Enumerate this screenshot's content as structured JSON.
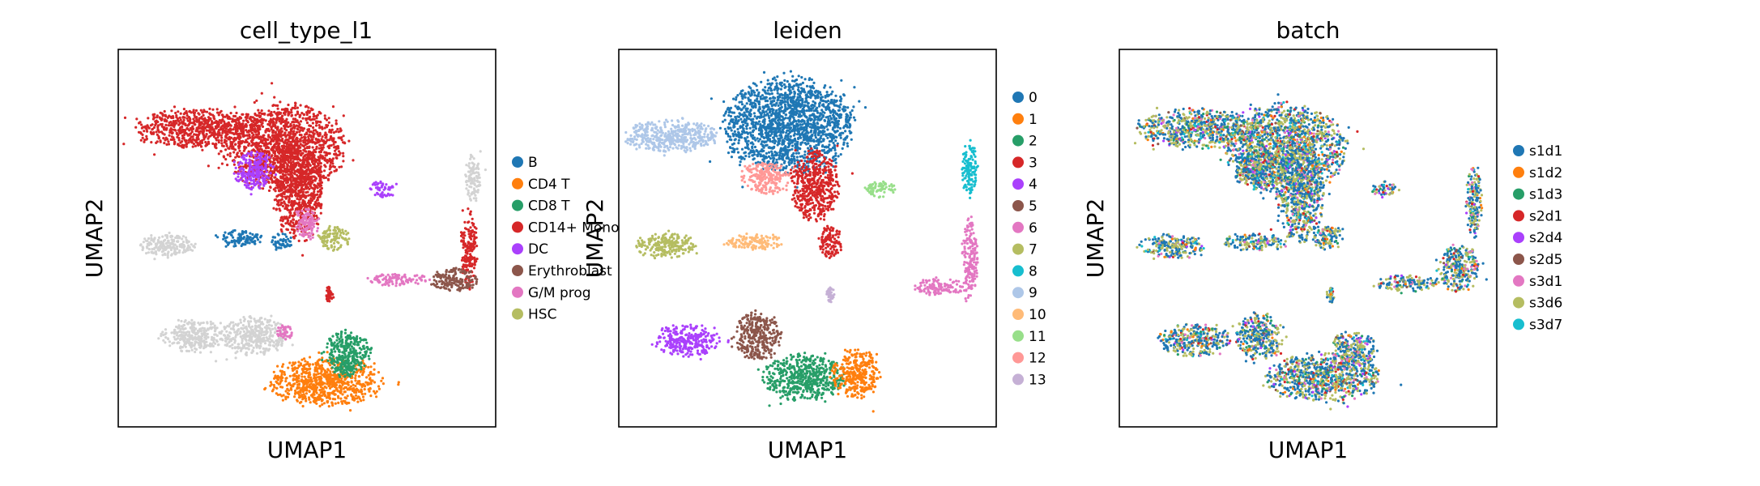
{
  "chart_data": [
    {
      "type": "scatter",
      "title": "cell_type_l1",
      "xlabel": "UMAP1",
      "ylabel": "UMAP2",
      "legend_position": "right",
      "categories": [
        {
          "name": "B",
          "color": "#1f77b4"
        },
        {
          "name": "CD4 T",
          "color": "#ff7f0e"
        },
        {
          "name": "CD8 T",
          "color": "#279e68"
        },
        {
          "name": "CD14+ Mono",
          "color": "#d62728"
        },
        {
          "name": "DC",
          "color": "#aa40fc"
        },
        {
          "name": "Erythroblast",
          "color": "#8c564b"
        },
        {
          "name": "G/M prog",
          "color": "#e377c2"
        },
        {
          "name": "HSC",
          "color": "#b5bd61"
        },
        {
          "name": "unlabeled",
          "color": "#d3d3d3",
          "legend": false
        }
      ],
      "clusters": [
        {
          "cat": "CD14+ Mono",
          "x": 44,
          "y": 26,
          "rx": 15,
          "ry": 11
        },
        {
          "cat": "CD14+ Mono",
          "x": 21,
          "y": 21,
          "rx": 15,
          "ry": 5
        },
        {
          "cat": "CD14+ Mono",
          "x": 48,
          "y": 38,
          "rx": 6,
          "ry": 12
        },
        {
          "cat": "DC",
          "x": 36,
          "y": 32,
          "rx": 5,
          "ry": 5
        },
        {
          "cat": "DC",
          "x": 70,
          "y": 37,
          "rx": 3,
          "ry": 2
        },
        {
          "cat": "G/M prog",
          "x": 50,
          "y": 46,
          "rx": 3,
          "ry": 4
        },
        {
          "cat": "unlabeled",
          "x": 94,
          "y": 34,
          "rx": 2,
          "ry": 6
        },
        {
          "cat": "CD14+ Mono",
          "x": 93,
          "y": 53,
          "rx": 2,
          "ry": 10
        },
        {
          "cat": "Erythroblast",
          "x": 89,
          "y": 61,
          "rx": 6,
          "ry": 3
        },
        {
          "cat": "G/M prog",
          "x": 74,
          "y": 61,
          "rx": 8,
          "ry": 1.5
        },
        {
          "cat": "HSC",
          "x": 57,
          "y": 50,
          "rx": 4,
          "ry": 3
        },
        {
          "cat": "unlabeled",
          "x": 13,
          "y": 52,
          "rx": 7,
          "ry": 3
        },
        {
          "cat": "B",
          "x": 32,
          "y": 50,
          "rx": 6,
          "ry": 2
        },
        {
          "cat": "B",
          "x": 43,
          "y": 51,
          "rx": 3,
          "ry": 2
        },
        {
          "cat": "CD14+ Mono",
          "x": 56,
          "y": 65,
          "rx": 1,
          "ry": 2
        },
        {
          "cat": "CD4 T",
          "x": 55,
          "y": 88,
          "rx": 14,
          "ry": 6
        },
        {
          "cat": "CD8 T",
          "x": 61,
          "y": 80,
          "rx": 6,
          "ry": 5
        },
        {
          "cat": "CD8 T",
          "x": 60,
          "y": 84,
          "rx": 3,
          "ry": 3
        },
        {
          "cat": "unlabeled",
          "x": 36,
          "y": 76,
          "rx": 8,
          "ry": 5
        },
        {
          "cat": "G/M prog",
          "x": 44,
          "y": 75,
          "rx": 2,
          "ry": 2
        },
        {
          "cat": "unlabeled",
          "x": 20,
          "y": 76,
          "rx": 8,
          "ry": 4
        }
      ]
    },
    {
      "type": "scatter",
      "title": "leiden",
      "xlabel": "UMAP1",
      "ylabel": "UMAP2",
      "legend_position": "right",
      "categories": [
        {
          "name": "0",
          "color": "#1f77b4"
        },
        {
          "name": "1",
          "color": "#ff7f0e"
        },
        {
          "name": "2",
          "color": "#279e68"
        },
        {
          "name": "3",
          "color": "#d62728"
        },
        {
          "name": "4",
          "color": "#aa40fc"
        },
        {
          "name": "5",
          "color": "#8c564b"
        },
        {
          "name": "6",
          "color": "#e377c2"
        },
        {
          "name": "7",
          "color": "#b5bd61"
        },
        {
          "name": "8",
          "color": "#17becf"
        },
        {
          "name": "9",
          "color": "#aec7e8"
        },
        {
          "name": "10",
          "color": "#ffbb78"
        },
        {
          "name": "11",
          "color": "#98df8a"
        },
        {
          "name": "12",
          "color": "#ff9896"
        },
        {
          "name": "13",
          "color": "#c5b0d5"
        }
      ],
      "clusters": [
        {
          "cat": "0",
          "x": 45,
          "y": 20,
          "rx": 16,
          "ry": 12
        },
        {
          "cat": "9",
          "x": 14,
          "y": 23,
          "rx": 12,
          "ry": 4
        },
        {
          "cat": "12",
          "x": 39,
          "y": 34,
          "rx": 6,
          "ry": 4
        },
        {
          "cat": "3",
          "x": 52,
          "y": 36,
          "rx": 6,
          "ry": 9
        },
        {
          "cat": "3",
          "x": 56,
          "y": 51,
          "rx": 3,
          "ry": 4
        },
        {
          "cat": "11",
          "x": 69,
          "y": 37,
          "rx": 4,
          "ry": 2
        },
        {
          "cat": "8",
          "x": 93,
          "y": 32,
          "rx": 2,
          "ry": 7
        },
        {
          "cat": "6",
          "x": 93,
          "y": 55,
          "rx": 2,
          "ry": 10
        },
        {
          "cat": "6",
          "x": 85,
          "y": 63,
          "rx": 7,
          "ry": 2
        },
        {
          "cat": "7",
          "x": 13,
          "y": 52,
          "rx": 8,
          "ry": 3
        },
        {
          "cat": "10",
          "x": 36,
          "y": 51,
          "rx": 7,
          "ry": 2
        },
        {
          "cat": "13",
          "x": 56,
          "y": 65,
          "rx": 1,
          "ry": 2
        },
        {
          "cat": "4",
          "x": 18,
          "y": 77,
          "rx": 8,
          "ry": 4
        },
        {
          "cat": "5",
          "x": 37,
          "y": 76,
          "rx": 6,
          "ry": 6
        },
        {
          "cat": "2",
          "x": 49,
          "y": 87,
          "rx": 10,
          "ry": 6
        },
        {
          "cat": "1",
          "x": 63,
          "y": 86,
          "rx": 6,
          "ry": 6
        }
      ]
    },
    {
      "type": "scatter",
      "title": "batch",
      "xlabel": "UMAP1",
      "ylabel": "UMAP2",
      "legend_position": "right",
      "mixed": true,
      "categories": [
        {
          "name": "s1d1",
          "color": "#1f77b4"
        },
        {
          "name": "s1d2",
          "color": "#ff7f0e"
        },
        {
          "name": "s1d3",
          "color": "#279e68"
        },
        {
          "name": "s2d1",
          "color": "#d62728"
        },
        {
          "name": "s2d4",
          "color": "#aa40fc"
        },
        {
          "name": "s2d5",
          "color": "#8c564b"
        },
        {
          "name": "s3d1",
          "color": "#e377c2"
        },
        {
          "name": "s3d6",
          "color": "#b5bd61"
        },
        {
          "name": "s3d7",
          "color": "#17becf"
        }
      ],
      "clusters": [
        {
          "x": 44,
          "y": 26,
          "rx": 15,
          "ry": 11
        },
        {
          "x": 21,
          "y": 21,
          "rx": 15,
          "ry": 5
        },
        {
          "x": 48,
          "y": 38,
          "rx": 6,
          "ry": 12
        },
        {
          "x": 36,
          "y": 32,
          "rx": 5,
          "ry": 5
        },
        {
          "x": 70,
          "y": 37,
          "rx": 3,
          "ry": 2
        },
        {
          "x": 94,
          "y": 40,
          "rx": 2,
          "ry": 9
        },
        {
          "x": 90,
          "y": 58,
          "rx": 5,
          "ry": 6
        },
        {
          "x": 76,
          "y": 62,
          "rx": 8,
          "ry": 2
        },
        {
          "x": 55,
          "y": 50,
          "rx": 4,
          "ry": 3
        },
        {
          "x": 14,
          "y": 52,
          "rx": 8,
          "ry": 3
        },
        {
          "x": 36,
          "y": 51,
          "rx": 8,
          "ry": 2
        },
        {
          "x": 56,
          "y": 65,
          "rx": 1,
          "ry": 2
        },
        {
          "x": 20,
          "y": 77,
          "rx": 9,
          "ry": 4
        },
        {
          "x": 37,
          "y": 76,
          "rx": 6,
          "ry": 6
        },
        {
          "x": 54,
          "y": 87,
          "rx": 14,
          "ry": 6
        },
        {
          "x": 62,
          "y": 80,
          "rx": 6,
          "ry": 5
        }
      ]
    }
  ]
}
